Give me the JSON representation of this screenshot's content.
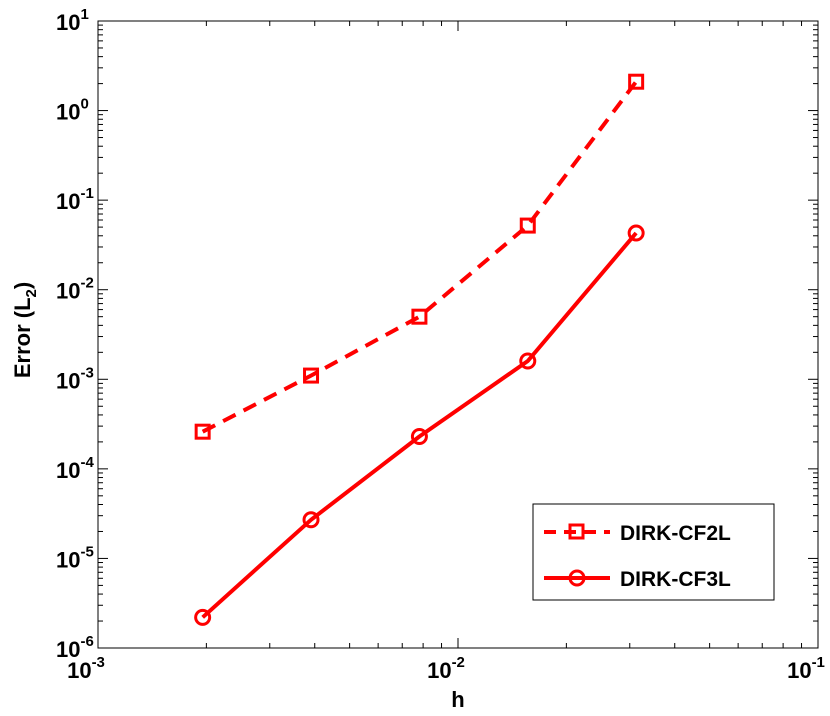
{
  "chart_data": {
    "type": "line",
    "xscale": "log",
    "yscale": "log",
    "xlim": [
      0.001,
      0.1
    ],
    "ylim": [
      1e-06,
      10
    ],
    "xlabel": "h",
    "ylabel_main": "Error (L",
    "ylabel_sub": "2",
    "ylabel_close": ")",
    "x_ticks": [
      {
        "base": "10",
        "exp": "-3",
        "value": 0.001
      },
      {
        "base": "10",
        "exp": "-2",
        "value": 0.01
      },
      {
        "base": "10",
        "exp": "-1",
        "value": 0.1
      }
    ],
    "y_ticks": [
      {
        "base": "10",
        "exp": "-6",
        "value": 1e-06
      },
      {
        "base": "10",
        "exp": "-5",
        "value": 1e-05
      },
      {
        "base": "10",
        "exp": "-4",
        "value": 0.0001
      },
      {
        "base": "10",
        "exp": "-3",
        "value": 0.001
      },
      {
        "base": "10",
        "exp": "-2",
        "value": 0.01
      },
      {
        "base": "10",
        "exp": "-1",
        "value": 0.1
      },
      {
        "base": "10",
        "exp": "0",
        "value": 1
      },
      {
        "base": "10",
        "exp": "1",
        "value": 10
      }
    ],
    "grid": false,
    "legend_position": "bottom-right",
    "series": [
      {
        "name": "DIRK-CF2L",
        "color": "#ff0000",
        "line_style": "dashed",
        "marker": "square",
        "x": [
          0.001953,
          0.003906,
          0.007813,
          0.015625,
          0.03125
        ],
        "y": [
          0.00026,
          0.0011,
          0.005,
          0.052,
          2.1
        ]
      },
      {
        "name": "DIRK-CF3L",
        "color": "#ff0000",
        "line_style": "solid",
        "marker": "circle",
        "x": [
          0.001953,
          0.003906,
          0.007813,
          0.015625,
          0.03125
        ],
        "y": [
          2.2e-06,
          2.7e-05,
          0.00023,
          0.0016,
          0.043
        ]
      }
    ]
  }
}
